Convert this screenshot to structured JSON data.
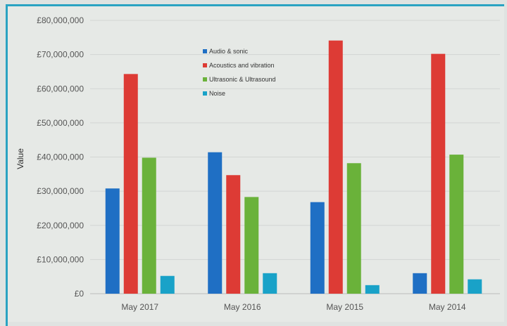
{
  "chart_data": {
    "type": "bar",
    "title": "",
    "xlabel": "",
    "ylabel": "Value",
    "ylim": [
      0,
      80000000
    ],
    "y_ticks": [
      "£0",
      "£10,000,000",
      "£20,000,000",
      "£30,000,000",
      "£40,000,000",
      "£50,000,000",
      "£60,000,000",
      "£70,000,000",
      "£80,000,000"
    ],
    "y_tick_values": [
      0,
      10000000,
      20000000,
      30000000,
      40000000,
      50000000,
      60000000,
      70000000,
      80000000
    ],
    "categories": [
      "May 2017",
      "May 2016",
      "May 2015",
      "May 2014"
    ],
    "series": [
      {
        "name": "Audio & sonic",
        "color": "#1f6fc4",
        "values": [
          30800000,
          41400000,
          26800000,
          6000000
        ]
      },
      {
        "name": "Acoustics and vibration",
        "color": "#dd3b35",
        "values": [
          64300000,
          34700000,
          74100000,
          70200000
        ]
      },
      {
        "name": "Ultrasonic & Ultrasound",
        "color": "#6ab23a",
        "values": [
          39800000,
          28300000,
          38200000,
          40700000
        ]
      },
      {
        "name": "Noise",
        "color": "#19a2c8",
        "values": [
          5200000,
          6000000,
          2500000,
          4200000
        ]
      }
    ],
    "grid": true,
    "legend_position": "top-center"
  }
}
